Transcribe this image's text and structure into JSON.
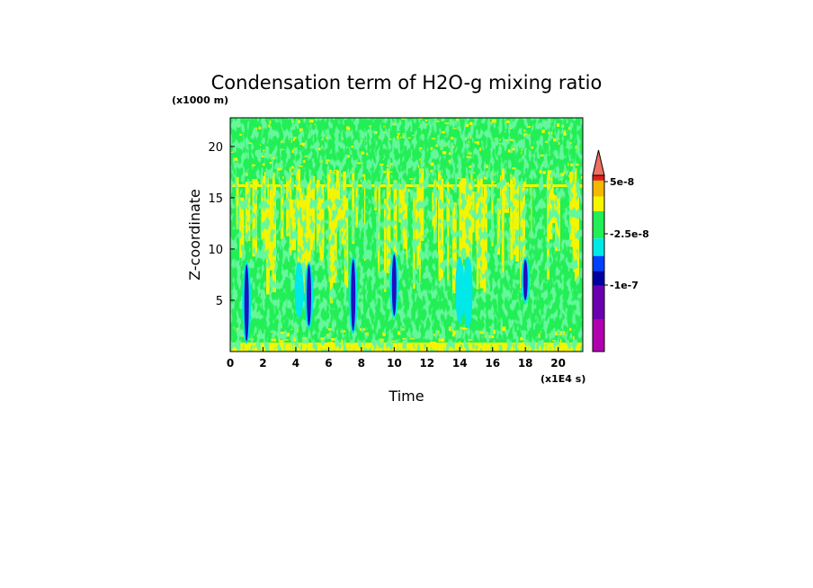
{
  "chart_data": {
    "type": "heatmap",
    "title": "Condensation term of H2O-g mixing ratio",
    "xlabel": "Time",
    "ylabel": "Z-coordinate",
    "x_unit_label": "(x1E4 s)",
    "y_unit_label": "(x1000 m)",
    "xlim": [
      0,
      21.5
    ],
    "ylim": [
      0,
      22.8
    ],
    "x_ticks": [
      "0",
      "2",
      "4",
      "6",
      "8",
      "10",
      "12",
      "14",
      "16",
      "18",
      "20"
    ],
    "y_ticks": [
      "5",
      "10",
      "15",
      "20"
    ],
    "colorbar": {
      "extend": "max",
      "labels": [
        "5e-8",
        "-2.5e-8",
        "-1e-7"
      ],
      "colors": [
        "#f07060",
        "#e0201c",
        "#f5b800",
        "#f5f500",
        "#22ee55",
        "#00e8e8",
        "#0040ff",
        "#0000a0",
        "#6a00b0",
        "#b000b0"
      ]
    },
    "background_layers": [
      {
        "name": "yellow",
        "color": "#f5f500"
      },
      {
        "name": "green",
        "color": "#22ee55"
      }
    ],
    "features": [
      {
        "time": 1.0,
        "z_range": [
          1.0,
          8.5
        ],
        "band": "-1e-7",
        "color": "#2010c0"
      },
      {
        "time": 4.2,
        "z_range": [
          3.5,
          8.5
        ],
        "band": "-2.5e-8",
        "color": "#00e8e8"
      },
      {
        "time": 4.8,
        "z_range": [
          2.5,
          8.5
        ],
        "band": "-1e-7",
        "color": "#2010c0"
      },
      {
        "time": 7.5,
        "z_range": [
          2.0,
          9.0
        ],
        "band": "-1e-7",
        "color": "#2010c0"
      },
      {
        "time": 10.0,
        "z_range": [
          3.5,
          9.5
        ],
        "band": "-1e-7",
        "color": "#2010c0"
      },
      {
        "time": 14.0,
        "z_range": [
          3.0,
          9.0
        ],
        "band": "-2.5e-8",
        "color": "#00e8e8"
      },
      {
        "time": 14.5,
        "z_range": [
          2.5,
          9.0
        ],
        "band": "-2.5e-8",
        "color": "#00e8e8"
      },
      {
        "time": 18.0,
        "z_range": [
          5.0,
          9.0
        ],
        "band": "-1e-7",
        "color": "#2010c0"
      }
    ],
    "grid": false
  }
}
